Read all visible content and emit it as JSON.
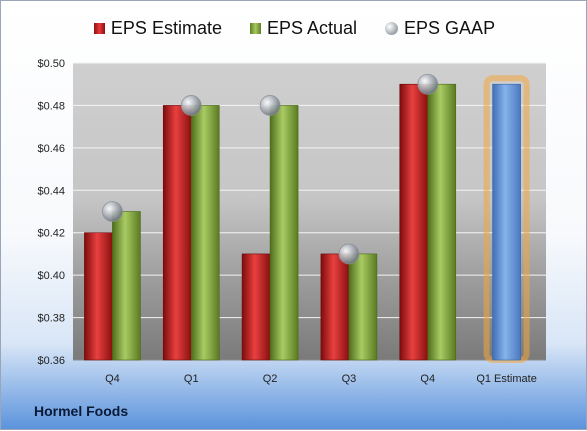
{
  "company": "Hormel Foods",
  "colors": {
    "estimate": "#c81c1c",
    "actual": "#86a843",
    "gaap": "#a6acb4",
    "forecast": "#5f93d6",
    "forecast_glow": "#f3a53d"
  },
  "chart_data": {
    "type": "bar",
    "categories": [
      "Q4",
      "Q1",
      "Q2",
      "Q3",
      "Q4",
      "Q1 Estimate"
    ],
    "series": [
      {
        "name": "EPS Estimate",
        "values": [
          0.42,
          0.48,
          0.41,
          0.41,
          0.49,
          null
        ]
      },
      {
        "name": "EPS Actual",
        "values": [
          0.43,
          0.48,
          0.48,
          0.41,
          0.49,
          null
        ]
      },
      {
        "name": "EPS GAAP",
        "values": [
          0.43,
          0.48,
          0.48,
          0.41,
          0.49,
          null
        ]
      }
    ],
    "forecast": {
      "category": "Q1 Estimate",
      "value": 0.49
    },
    "ylim": [
      0.36,
      0.5
    ],
    "yticks": [
      0.36,
      0.38,
      0.4,
      0.42,
      0.44,
      0.46,
      0.48,
      0.5
    ],
    "ytick_labels": [
      "$0.36",
      "$0.38",
      "$0.40",
      "$0.42",
      "$0.44",
      "$0.46",
      "$0.48",
      "$0.50"
    ],
    "grid": true,
    "legend_position": "top"
  }
}
